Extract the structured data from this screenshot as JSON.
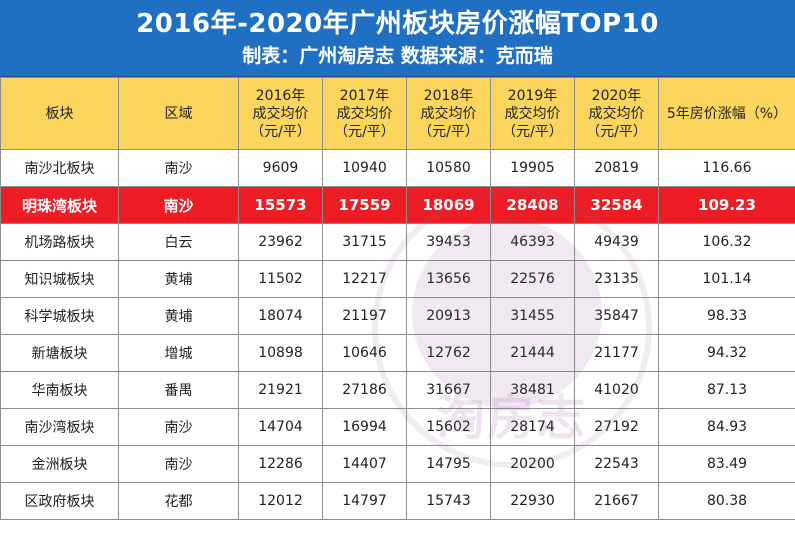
{
  "header": {
    "title": "2016年-2020年广州板块房价涨幅TOP10",
    "subtitle": "制表：广州淘房志  数据来源：克而瑞"
  },
  "columns": {
    "name": "板块",
    "district": "区域",
    "y2016": [
      "2016年",
      "成交均价",
      "（元/平）"
    ],
    "y2017": [
      "2017年",
      "成交均价",
      "（元/平）"
    ],
    "y2018": [
      "2018年",
      "成交均价",
      "（元/平）"
    ],
    "y2019": [
      "2019年",
      "成交均价",
      "（元/平）"
    ],
    "y2020": [
      "2020年",
      "成交均价",
      "（元/平）"
    ],
    "growth": "5年房价涨幅（%）"
  },
  "rows": [
    {
      "name": "南沙北板块",
      "district": "南沙",
      "y2016": "9609",
      "y2017": "10940",
      "y2018": "10580",
      "y2019": "19905",
      "y2020": "20819",
      "growth": "116.66"
    },
    {
      "name": "明珠湾板块",
      "district": "南沙",
      "y2016": "15573",
      "y2017": "17559",
      "y2018": "18069",
      "y2019": "28408",
      "y2020": "32584",
      "growth": "109.23"
    },
    {
      "name": "机场路板块",
      "district": "白云",
      "y2016": "23962",
      "y2017": "31715",
      "y2018": "39453",
      "y2019": "46393",
      "y2020": "49439",
      "growth": "106.32"
    },
    {
      "name": "知识城板块",
      "district": "黄埔",
      "y2016": "11502",
      "y2017": "12217",
      "y2018": "13656",
      "y2019": "22576",
      "y2020": "23135",
      "growth": "101.14"
    },
    {
      "name": "科学城板块",
      "district": "黄埔",
      "y2016": "18074",
      "y2017": "21197",
      "y2018": "20913",
      "y2019": "31455",
      "y2020": "35847",
      "growth": "98.33"
    },
    {
      "name": "新塘板块",
      "district": "增城",
      "y2016": "10898",
      "y2017": "10646",
      "y2018": "12762",
      "y2019": "21444",
      "y2020": "21177",
      "growth": "94.32"
    },
    {
      "name": "华南板块",
      "district": "番禺",
      "y2016": "21921",
      "y2017": "27186",
      "y2018": "31667",
      "y2019": "38481",
      "y2020": "41020",
      "growth": "87.13"
    },
    {
      "name": "南沙湾板块",
      "district": "南沙",
      "y2016": "14704",
      "y2017": "16994",
      "y2018": "15602",
      "y2019": "28174",
      "y2020": "27192",
      "growth": "84.93"
    },
    {
      "name": "金洲板块",
      "district": "南沙",
      "y2016": "12286",
      "y2017": "14407",
      "y2018": "14795",
      "y2019": "20200",
      "y2020": "22543",
      "growth": "83.49"
    },
    {
      "name": "区政府板块",
      "district": "花都",
      "y2016": "12012",
      "y2017": "14797",
      "y2018": "15743",
      "y2019": "22930",
      "y2020": "21667",
      "growth": "80.38"
    }
  ],
  "highlight_row": 1,
  "watermark": {
    "text": "淘房志"
  },
  "colors": {
    "header_bg": "#1f6fc2",
    "col_header_bg": "#fcd55d",
    "highlight_bg": "#ee1c24"
  }
}
